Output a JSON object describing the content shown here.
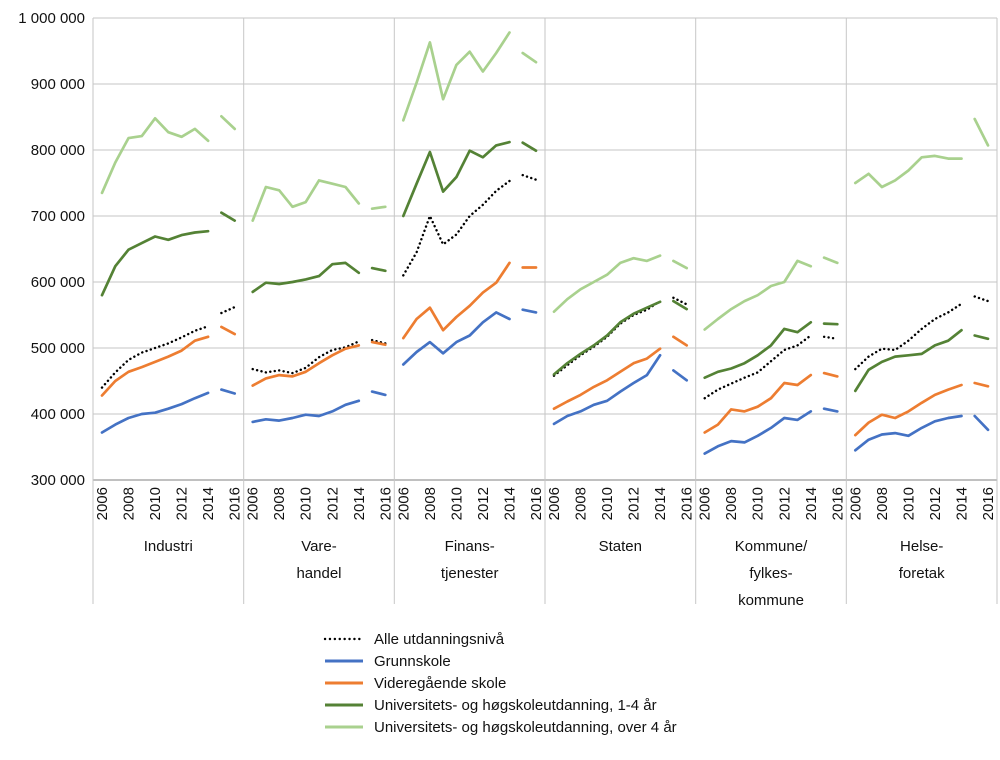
{
  "chart_data": {
    "type": "line",
    "unit": "NOK",
    "ylim": [
      300000,
      1000000
    ],
    "ytick_step": 100000,
    "yticks": [
      "300 000",
      "400 000",
      "500 000",
      "600 000",
      "700 000",
      "800 000",
      "900 000",
      "1 000 000"
    ],
    "x_years": [
      2006,
      2007,
      2008,
      2009,
      2010,
      2011,
      2012,
      2013,
      2014,
      2015,
      2016
    ],
    "x_tick_years": [
      2006,
      2008,
      2010,
      2012,
      2014,
      2016
    ],
    "break_after_year": 2014,
    "grid": true,
    "legend_position": "bottom-left",
    "groups": [
      {
        "name": "Industri",
        "label_lines": [
          "Industri"
        ]
      },
      {
        "name": "Varehandel",
        "label_lines": [
          "Vare-",
          "handel"
        ]
      },
      {
        "name": "Finanstjenester",
        "label_lines": [
          "Finans-",
          "tjenester"
        ]
      },
      {
        "name": "Staten",
        "label_lines": [
          "Staten"
        ]
      },
      {
        "name": "Kommune/fylkeskommune",
        "label_lines": [
          "Kommune/",
          "fylkes-",
          "kommune"
        ]
      },
      {
        "name": "Helseforetak",
        "label_lines": [
          "Helse-",
          "foretak"
        ]
      }
    ],
    "series": [
      {
        "name": "Alle utdanningsnivå",
        "color": "#000000",
        "style": "dotted",
        "values": [
          [
            440000,
            463000,
            482000,
            493000,
            500000,
            507000,
            516000,
            526000,
            533000,
            553000,
            562000
          ],
          [
            468000,
            463000,
            466000,
            462000,
            470000,
            486000,
            497000,
            501000,
            510000,
            512000,
            507000
          ],
          [
            610000,
            645000,
            700000,
            657000,
            672000,
            700000,
            717000,
            738000,
            753000,
            762000,
            755000
          ],
          [
            458000,
            474000,
            489000,
            502000,
            517000,
            537000,
            550000,
            558000,
            571000,
            576000,
            566000
          ],
          [
            424000,
            437000,
            446000,
            455000,
            463000,
            480000,
            497000,
            504000,
            519000,
            517000,
            514000
          ],
          [
            468000,
            487000,
            499000,
            497000,
            511000,
            529000,
            544000,
            554000,
            567000,
            578000,
            571000
          ]
        ]
      },
      {
        "name": "Grunnskole",
        "color": "#4472C4",
        "style": "solid",
        "values": [
          [
            372000,
            384000,
            394000,
            400000,
            402000,
            408000,
            415000,
            424000,
            432000,
            437000,
            431000
          ],
          [
            388000,
            392000,
            390000,
            394000,
            399000,
            397000,
            404000,
            414000,
            420000,
            434000,
            429000
          ],
          [
            475000,
            494000,
            509000,
            492000,
            509000,
            519000,
            539000,
            554000,
            544000,
            558000,
            554000
          ],
          [
            385000,
            397000,
            404000,
            414000,
            420000,
            434000,
            447000,
            459000,
            489000,
            466000,
            451000
          ],
          [
            340000,
            351000,
            359000,
            357000,
            367000,
            379000,
            394000,
            391000,
            404000,
            408000,
            404000
          ],
          [
            345000,
            361000,
            369000,
            371000,
            367000,
            379000,
            389000,
            394000,
            397000,
            397000,
            376000
          ]
        ]
      },
      {
        "name": "Videregående skole",
        "color": "#ED7D31",
        "style": "solid",
        "values": [
          [
            428000,
            450000,
            464000,
            471000,
            479000,
            487000,
            496000,
            511000,
            517000,
            532000,
            521000
          ],
          [
            443000,
            454000,
            459000,
            457000,
            464000,
            477000,
            489000,
            499000,
            504000,
            509000,
            505000
          ],
          [
            515000,
            544000,
            561000,
            527000,
            547000,
            564000,
            584000,
            599000,
            629000,
            622000,
            622000
          ],
          [
            408000,
            419000,
            429000,
            441000,
            451000,
            464000,
            477000,
            484000,
            499000,
            517000,
            504000
          ],
          [
            372000,
            384000,
            407000,
            404000,
            411000,
            424000,
            447000,
            444000,
            459000,
            462000,
            457000
          ],
          [
            368000,
            387000,
            399000,
            394000,
            404000,
            417000,
            429000,
            437000,
            444000,
            447000,
            442000
          ]
        ]
      },
      {
        "name": "Universitets- og høgskoleutdanning, 1-4 år",
        "color": "#548235",
        "style": "solid",
        "values": [
          [
            580000,
            624000,
            649000,
            659000,
            669000,
            664000,
            671000,
            675000,
            677000,
            705000,
            693000
          ],
          [
            585000,
            599000,
            597000,
            600000,
            604000,
            609000,
            627000,
            629000,
            614000,
            621000,
            617000
          ],
          [
            700000,
            749000,
            797000,
            737000,
            759000,
            799000,
            789000,
            807000,
            812000,
            811000,
            799000
          ],
          [
            460000,
            477000,
            491000,
            504000,
            519000,
            539000,
            552000,
            561000,
            570000,
            571000,
            559000
          ],
          [
            455000,
            464000,
            469000,
            477000,
            489000,
            504000,
            529000,
            524000,
            539000,
            537000,
            536000
          ],
          [
            435000,
            467000,
            479000,
            487000,
            489000,
            491000,
            504000,
            511000,
            527000,
            519000,
            514000
          ]
        ]
      },
      {
        "name": "Universitets- og høgskoleutdanning, over 4 år",
        "color": "#A9D18E",
        "style": "solid",
        "values": [
          [
            735000,
            781000,
            818000,
            821000,
            848000,
            827000,
            820000,
            832000,
            814000,
            851000,
            832000
          ],
          [
            693000,
            744000,
            739000,
            714000,
            721000,
            754000,
            749000,
            744000,
            719000,
            711000,
            714000
          ],
          [
            845000,
            902000,
            963000,
            877000,
            929000,
            949000,
            919000,
            947000,
            978000,
            947000,
            933000
          ],
          [
            555000,
            574000,
            589000,
            600000,
            611000,
            629000,
            636000,
            632000,
            640000,
            632000,
            621000
          ],
          [
            528000,
            544000,
            559000,
            571000,
            580000,
            594000,
            600000,
            632000,
            624000,
            637000,
            629000
          ],
          [
            750000,
            764000,
            744000,
            754000,
            769000,
            789000,
            791000,
            787000,
            787000,
            847000,
            807000
          ]
        ]
      }
    ]
  }
}
